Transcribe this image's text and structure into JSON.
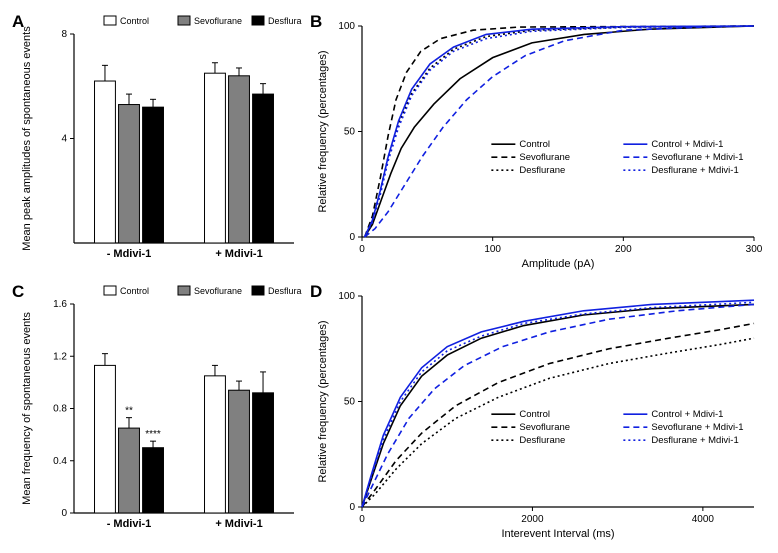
{
  "panelA": {
    "label": "A",
    "ylabel": "Mean peak amplitudes of spontaneous events",
    "groups": [
      "- Mdivi-1",
      "+ Mdivi-1"
    ],
    "legend": [
      "Control",
      "Sevoflurane",
      "Desflurane"
    ],
    "legend_colors": [
      "#ffffff",
      "#808080",
      "#000000"
    ],
    "bar_stroke": "#000000",
    "values_minus": [
      6.2,
      5.3,
      5.2
    ],
    "err_minus": [
      0.6,
      0.4,
      0.3
    ],
    "values_plus": [
      6.5,
      6.4,
      5.7
    ],
    "err_plus": [
      0.4,
      0.3,
      0.4
    ],
    "ylim": [
      0,
      8
    ],
    "yticks": [
      4,
      8
    ],
    "bar_width": 0.7
  },
  "panelB": {
    "label": "B",
    "ylabel": "Relative frequency (percentages)",
    "xlabel": "Amplitude (pA)",
    "xlim": [
      0,
      300
    ],
    "ylim": [
      0,
      100
    ],
    "xticks": [
      0,
      100,
      200,
      300
    ],
    "yticks": [
      0,
      50,
      100
    ],
    "series": [
      {
        "name": "Control",
        "color": "#000000",
        "dash": "",
        "pts": [
          [
            2,
            0
          ],
          [
            8,
            6
          ],
          [
            15,
            18
          ],
          [
            22,
            30
          ],
          [
            30,
            42
          ],
          [
            40,
            52
          ],
          [
            55,
            63
          ],
          [
            75,
            75
          ],
          [
            100,
            85
          ],
          [
            130,
            92
          ],
          [
            170,
            96
          ],
          [
            220,
            98.5
          ],
          [
            300,
            100
          ]
        ]
      },
      {
        "name": "Sevoflurane",
        "color": "#000000",
        "dash": "6,4",
        "pts": [
          [
            2,
            0
          ],
          [
            8,
            10
          ],
          [
            14,
            28
          ],
          [
            20,
            48
          ],
          [
            26,
            65
          ],
          [
            34,
            78
          ],
          [
            45,
            88
          ],
          [
            60,
            94
          ],
          [
            85,
            98
          ],
          [
            120,
            99.5
          ],
          [
            300,
            100
          ]
        ]
      },
      {
        "name": "Desflurane",
        "color": "#000000",
        "dash": "2,3",
        "pts": [
          [
            2,
            0
          ],
          [
            8,
            8
          ],
          [
            14,
            22
          ],
          [
            20,
            38
          ],
          [
            28,
            54
          ],
          [
            38,
            68
          ],
          [
            52,
            80
          ],
          [
            70,
            89
          ],
          [
            95,
            95
          ],
          [
            130,
            98
          ],
          [
            200,
            99.5
          ],
          [
            300,
            100
          ]
        ]
      },
      {
        "name": "Control + Mdivi-1",
        "color": "#1020e0",
        "dash": "",
        "pts": [
          [
            2,
            0
          ],
          [
            8,
            8
          ],
          [
            14,
            22
          ],
          [
            20,
            38
          ],
          [
            28,
            55
          ],
          [
            38,
            70
          ],
          [
            52,
            82
          ],
          [
            70,
            90
          ],
          [
            95,
            96
          ],
          [
            130,
            98.5
          ],
          [
            200,
            99.7
          ],
          [
            300,
            100
          ]
        ]
      },
      {
        "name": "Sevoflurane + Mdivi-1",
        "color": "#1020e0",
        "dash": "6,4",
        "pts": [
          [
            2,
            0
          ],
          [
            10,
            4
          ],
          [
            20,
            12
          ],
          [
            32,
            24
          ],
          [
            46,
            38
          ],
          [
            62,
            52
          ],
          [
            80,
            65
          ],
          [
            100,
            76
          ],
          [
            125,
            86
          ],
          [
            155,
            93
          ],
          [
            200,
            98
          ],
          [
            260,
            99.5
          ],
          [
            300,
            100
          ]
        ]
      },
      {
        "name": "Desflurane + Mdivi-1",
        "color": "#1020e0",
        "dash": "2,3",
        "pts": [
          [
            2,
            0
          ],
          [
            8,
            7
          ],
          [
            14,
            20
          ],
          [
            20,
            36
          ],
          [
            28,
            52
          ],
          [
            38,
            67
          ],
          [
            52,
            79
          ],
          [
            70,
            88
          ],
          [
            95,
            94
          ],
          [
            130,
            97.5
          ],
          [
            200,
            99.3
          ],
          [
            300,
            100
          ]
        ]
      }
    ],
    "legend_pos": "lower-right"
  },
  "panelC": {
    "label": "C",
    "ylabel": "Mean frequency of spontaneous events",
    "groups": [
      "- Mdivi-1",
      "+ Mdivi-1"
    ],
    "legend": [
      "Control",
      "Sevoflurane",
      "Desflurane"
    ],
    "legend_colors": [
      "#ffffff",
      "#808080",
      "#000000"
    ],
    "values_minus": [
      1.13,
      0.65,
      0.5
    ],
    "err_minus": [
      0.09,
      0.08,
      0.05
    ],
    "values_plus": [
      1.05,
      0.94,
      0.92
    ],
    "err_plus": [
      0.08,
      0.07,
      0.16
    ],
    "ylim": [
      0,
      1.6
    ],
    "yticks": [
      0.0,
      0.4,
      0.8,
      1.2,
      1.6
    ],
    "sig": [
      {
        "group": "- Mdivi-1",
        "bar": 1,
        "label": "**"
      },
      {
        "group": "- Mdivi-1",
        "bar": 2,
        "label": "****"
      }
    ],
    "bar_stroke": "#000000"
  },
  "panelD": {
    "label": "D",
    "ylabel": "Relative frequency (percentages)",
    "xlabel": "Interevent Interval (ms)",
    "xlim": [
      0,
      4600
    ],
    "ylim": [
      0,
      100
    ],
    "xticks": [
      0,
      2000,
      4000
    ],
    "yticks": [
      0,
      50,
      100
    ],
    "series": [
      {
        "name": "Control",
        "color": "#000000",
        "dash": "",
        "pts": [
          [
            0,
            0
          ],
          [
            100,
            12
          ],
          [
            250,
            30
          ],
          [
            450,
            48
          ],
          [
            700,
            62
          ],
          [
            1000,
            72
          ],
          [
            1400,
            80
          ],
          [
            1900,
            86
          ],
          [
            2600,
            91
          ],
          [
            3400,
            94
          ],
          [
            4600,
            96
          ]
        ]
      },
      {
        "name": "Sevoflurane",
        "color": "#000000",
        "dash": "6,4",
        "pts": [
          [
            0,
            0
          ],
          [
            150,
            8
          ],
          [
            400,
            22
          ],
          [
            700,
            35
          ],
          [
            1100,
            48
          ],
          [
            1600,
            59
          ],
          [
            2200,
            68
          ],
          [
            2900,
            75
          ],
          [
            3600,
            80
          ],
          [
            4200,
            84
          ],
          [
            4600,
            87
          ]
        ]
      },
      {
        "name": "Desflurane",
        "color": "#000000",
        "dash": "2,3",
        "pts": [
          [
            0,
            0
          ],
          [
            150,
            6
          ],
          [
            400,
            18
          ],
          [
            700,
            30
          ],
          [
            1100,
            42
          ],
          [
            1600,
            52
          ],
          [
            2200,
            61
          ],
          [
            2900,
            68
          ],
          [
            3600,
            73
          ],
          [
            4200,
            77
          ],
          [
            4600,
            80
          ]
        ]
      },
      {
        "name": "Control + Mdivi-1",
        "color": "#1020e0",
        "dash": "",
        "pts": [
          [
            0,
            0
          ],
          [
            100,
            14
          ],
          [
            250,
            34
          ],
          [
            450,
            52
          ],
          [
            700,
            66
          ],
          [
            1000,
            76
          ],
          [
            1400,
            83
          ],
          [
            1900,
            88
          ],
          [
            2600,
            93
          ],
          [
            3400,
            96
          ],
          [
            4600,
            98
          ]
        ]
      },
      {
        "name": "Sevoflurane + Mdivi-1",
        "color": "#1020e0",
        "dash": "6,4",
        "pts": [
          [
            0,
            0
          ],
          [
            120,
            10
          ],
          [
            300,
            25
          ],
          [
            550,
            42
          ],
          [
            850,
            56
          ],
          [
            1200,
            67
          ],
          [
            1650,
            76
          ],
          [
            2200,
            83
          ],
          [
            2900,
            89
          ],
          [
            3700,
            93
          ],
          [
            4600,
            96
          ]
        ]
      },
      {
        "name": "Desflurane + Mdivi-1",
        "color": "#1020e0",
        "dash": "2,3",
        "pts": [
          [
            0,
            0
          ],
          [
            100,
            13
          ],
          [
            250,
            32
          ],
          [
            450,
            50
          ],
          [
            700,
            64
          ],
          [
            1000,
            74
          ],
          [
            1400,
            81
          ],
          [
            1900,
            87
          ],
          [
            2600,
            91.5
          ],
          [
            3400,
            94.5
          ],
          [
            4600,
            97
          ]
        ]
      }
    ]
  },
  "global": {
    "axis_color": "#000000",
    "font_size_axis": 11,
    "font_size_tick": 10,
    "line_width": 1.6
  }
}
